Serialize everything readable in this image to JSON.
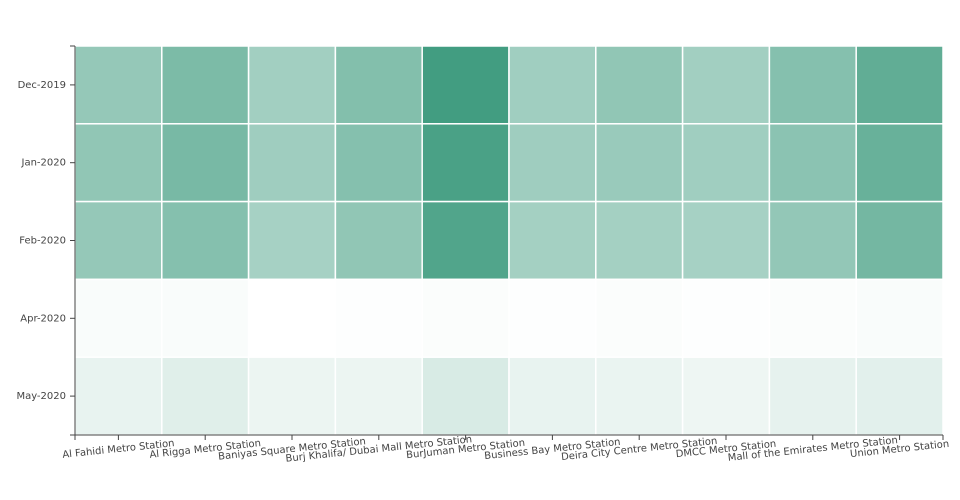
{
  "chart_data": {
    "type": "heatmap",
    "x": [
      "Al Fahidi Metro Station",
      "Al Rigga Metro Station",
      "Baniyas Square Metro Station",
      "Burj Khalifa/ Dubai Mall Metro Station",
      "BurJuman Metro Station",
      "Business Bay Metro Station",
      "Deira City Centre Metro Station",
      "DMCC Metro Station",
      "Mall of the Emirates Metro Station",
      "Union Metro Station"
    ],
    "y": [
      "Dec-2019",
      "Jan-2020",
      "Feb-2020",
      "Apr-2020",
      "May-2020"
    ],
    "values": [
      [
        55,
        68,
        48,
        64,
        98,
        49,
        57,
        48,
        63,
        82
      ],
      [
        57,
        70,
        50,
        63,
        94,
        50,
        53,
        49,
        60,
        78
      ],
      [
        55,
        63,
        46,
        57,
        90,
        47,
        47,
        46,
        56,
        72
      ],
      [
        3,
        3,
        0,
        1,
        2,
        1,
        2,
        1,
        2,
        3
      ],
      [
        12,
        16,
        10,
        10,
        20,
        12,
        11,
        9,
        13,
        15
      ]
    ],
    "zlim": [
      0,
      100
    ],
    "colorscale": [
      "#ffffff",
      "#3e9b7e"
    ]
  }
}
